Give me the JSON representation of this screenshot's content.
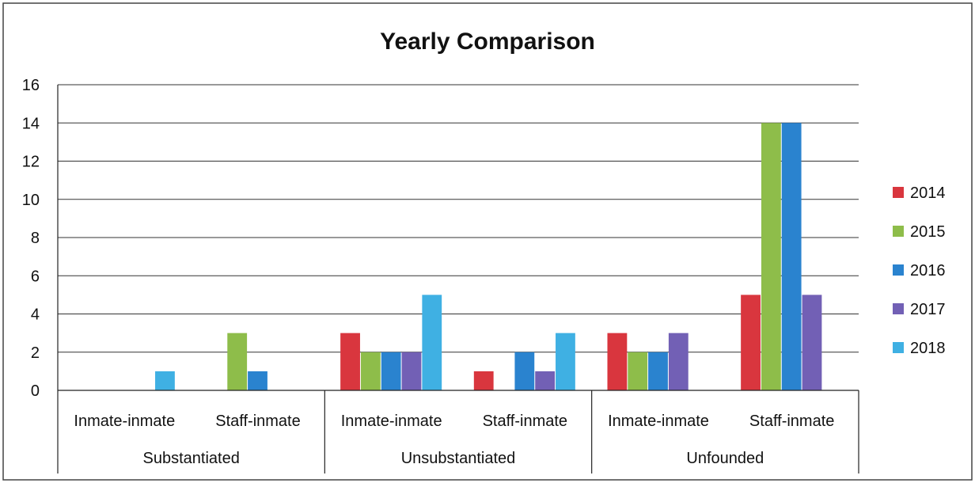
{
  "chart_data": {
    "type": "bar",
    "title": "Yearly Comparison",
    "xlabel": "",
    "ylabel": "",
    "ylim": [
      0,
      16
    ],
    "yticks": [
      0,
      2,
      4,
      6,
      8,
      10,
      12,
      14,
      16
    ],
    "grid": true,
    "legend_position": "right",
    "groups": [
      {
        "label": "Substantiated",
        "categories": [
          "Inmate-inmate",
          "Staff-inmate"
        ]
      },
      {
        "label": "Unsubstantiated",
        "categories": [
          "Inmate-inmate",
          "Staff-inmate"
        ]
      },
      {
        "label": "Unfounded",
        "categories": [
          "Inmate-inmate",
          "Staff-inmate"
        ]
      }
    ],
    "categories": [
      "Inmate-inmate",
      "Staff-inmate",
      "Inmate-inmate",
      "Staff-inmate",
      "Inmate-inmate",
      "Staff-inmate"
    ],
    "series": [
      {
        "name": "2014",
        "color": "#d9363e",
        "values": [
          0,
          0,
          3,
          1,
          3,
          5
        ]
      },
      {
        "name": "2015",
        "color": "#8ebd4a",
        "values": [
          0,
          3,
          2,
          0,
          2,
          14
        ]
      },
      {
        "name": "2016",
        "color": "#2a83cf",
        "values": [
          0,
          1,
          2,
          2,
          2,
          14
        ]
      },
      {
        "name": "2017",
        "color": "#7260b5",
        "values": [
          0,
          0,
          2,
          1,
          3,
          5
        ]
      },
      {
        "name": "2018",
        "color": "#3fb0e3",
        "values": [
          1,
          0,
          5,
          3,
          0,
          0
        ]
      }
    ]
  }
}
